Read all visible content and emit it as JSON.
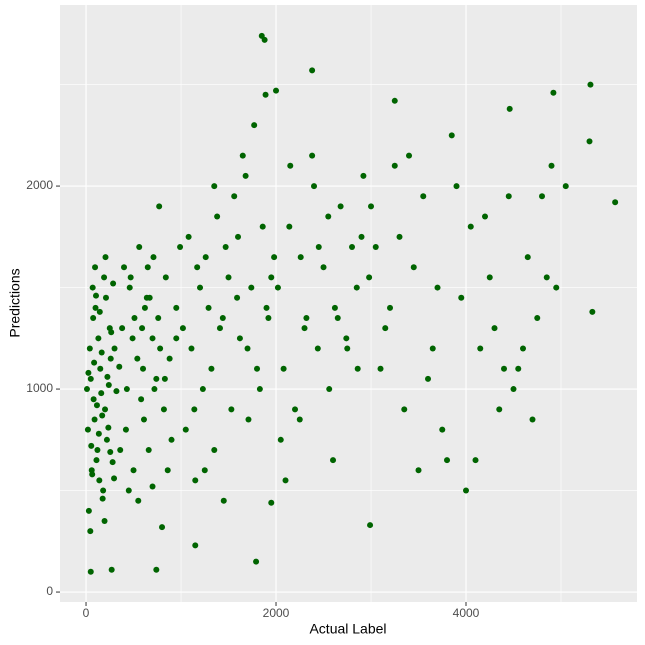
{
  "chart_data": {
    "type": "scatter",
    "x_label": "Actual Label",
    "y_label": "Predictions",
    "color": "#006400",
    "background": "#ebebeb",
    "grid": true,
    "xlim": [
      -274,
      5800
    ],
    "ylim": [
      -49,
      2892
    ],
    "xticks": [
      0,
      2000,
      4000
    ],
    "yticks": [
      0,
      1000,
      2000
    ],
    "x_minor_grid": [
      1000,
      3000,
      5000
    ],
    "y_minor_grid": [
      500,
      1500,
      2500
    ],
    "x": [
      20,
      40,
      60,
      80,
      100,
      120,
      150,
      180,
      200,
      250,
      30,
      50,
      70,
      90,
      110,
      130,
      160,
      190,
      220,
      260,
      10,
      45,
      75,
      95,
      140,
      170,
      210,
      240,
      280,
      300,
      55,
      85,
      115,
      145,
      175,
      205,
      235,
      265,
      295,
      320,
      25,
      65,
      105,
      135,
      165,
      195,
      225,
      255,
      285,
      350,
      380,
      420,
      460,
      500,
      540,
      580,
      620,
      660,
      700,
      740,
      400,
      450,
      510,
      560,
      610,
      670,
      720,
      780,
      840,
      900,
      430,
      490,
      550,
      600,
      650,
      700,
      760,
      820,
      880,
      950,
      360,
      470,
      590,
      710,
      830,
      950,
      990,
      860,
      770,
      640,
      1020,
      1080,
      1140,
      1200,
      1260,
      1320,
      1380,
      1440,
      1500,
      1560,
      1050,
      1110,
      1170,
      1230,
      1290,
      1350,
      1410,
      1470,
      1530,
      1590,
      1620,
      1680,
      1740,
      1800,
      1860,
      1920,
      1980,
      1650,
      1710,
      1770,
      1830,
      1890,
      1950,
      1600,
      1700,
      1900,
      1250,
      1450,
      1350,
      1150,
      2020,
      2080,
      2140,
      2200,
      2260,
      2320,
      2380,
      2440,
      2500,
      2560,
      2620,
      2680,
      2740,
      2800,
      2860,
      2920,
      2980,
      2050,
      2300,
      2550,
      2100,
      2400,
      2650,
      2900,
      2250,
      2750,
      2450,
      2150,
      2600,
      2850,
      3050,
      3150,
      3250,
      3350,
      3450,
      3550,
      3650,
      3750,
      3850,
      3950,
      3100,
      3300,
      3500,
      3700,
      3900,
      3200,
      3400,
      3600,
      3800,
      3000,
      4050,
      4150,
      4250,
      4350,
      4450,
      4550,
      4650,
      4750,
      4850,
      4950,
      4100,
      4300,
      4500,
      4700,
      4900,
      4200,
      4400,
      4600,
      4800,
      5050,
      1850,
      1880,
      2380,
      5310,
      4920,
      5570,
      5300,
      5330,
      2990,
      1790,
      740,
      50,
      270,
      4460,
      3250,
      4000,
      1150,
      800,
      2000,
      1950
    ],
    "y": [
      800,
      1200,
      600,
      950,
      1400,
      700,
      1100,
      500,
      900,
      1300,
      400,
      1050,
      1500,
      850,
      650,
      1250,
      980,
      1550,
      750,
      1150,
      1000,
      300,
      1350,
      1600,
      550,
      870,
      1450,
      1020,
      640,
      1200,
      720,
      1130,
      920,
      1380,
      460,
      1650,
      810,
      1280,
      560,
      990,
      1080,
      580,
      1460,
      780,
      1180,
      350,
      1060,
      690,
      1520,
      1110,
      1300,
      800,
      1500,
      600,
      1150,
      950,
      1400,
      700,
      1250,
      1050,
      1600,
      500,
      1350,
      1700,
      850,
      1450,
      1000,
      1200,
      1550,
      750,
      1000,
      1250,
      450,
      1100,
      1600,
      520,
      1350,
      900,
      1150,
      1400,
      700,
      1550,
      1300,
      1650,
      1050,
      1250,
      1700,
      600,
      1900,
      1450,
      1300,
      1750,
      900,
      1500,
      1650,
      1100,
      1850,
      1350,
      1550,
      1950,
      800,
      1200,
      1600,
      1000,
      1400,
      700,
      1300,
      1700,
      900,
      1450,
      1250,
      2050,
      1500,
      1100,
      1800,
      1350,
      1650,
      2150,
      850,
      2300,
      1000,
      2450,
      1550,
      1750,
      1200,
      1400,
      600,
      450,
      2000,
      550,
      1500,
      1100,
      1800,
      900,
      1650,
      1350,
      2150,
      1200,
      1600,
      1000,
      1400,
      1900,
      1250,
      1700,
      1100,
      2050,
      1550,
      750,
      1300,
      1850,
      550,
      2000,
      1350,
      1750,
      850,
      1200,
      1700,
      2100,
      650,
      1500,
      1700,
      1300,
      2100,
      900,
      1600,
      1950,
      1200,
      800,
      2250,
      1450,
      1100,
      1750,
      600,
      1500,
      2000,
      1400,
      2150,
      1050,
      650,
      1900,
      1800,
      1200,
      1550,
      900,
      1950,
      1100,
      1650,
      1350,
      1550,
      1500,
      650,
      1300,
      1000,
      850,
      2100,
      1850,
      1100,
      1200,
      1950,
      2000,
      2740,
      2720,
      2570,
      2500,
      2460,
      1920,
      2220,
      1380,
      330,
      150,
      110,
      100,
      110,
      2380,
      2420,
      500,
      230,
      320,
      2470,
      440
    ]
  }
}
